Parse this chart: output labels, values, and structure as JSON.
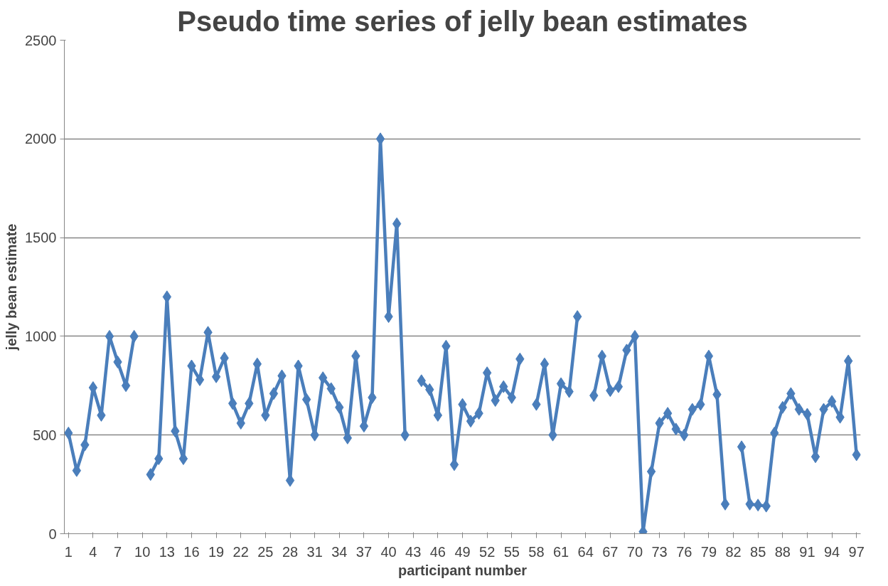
{
  "chart_data": {
    "type": "line",
    "title": "Pseudo time series of jelly bean estimates",
    "xlabel": "participant number",
    "ylabel": "jelly bean estimate",
    "categories": [
      "1",
      null,
      null,
      "4",
      null,
      null,
      "7",
      null,
      null,
      "10",
      null,
      null,
      "13",
      null,
      null,
      "16",
      null,
      null,
      "19",
      null,
      null,
      "22",
      null,
      null,
      "25",
      null,
      null,
      "28",
      null,
      null,
      "31",
      null,
      null,
      "34",
      null,
      null,
      "37",
      null,
      null,
      "40",
      null,
      null,
      "43",
      null,
      null,
      "46",
      null,
      null,
      "49",
      null,
      null,
      "52",
      null,
      null,
      "55",
      null,
      null,
      "58",
      null,
      null,
      "61",
      null,
      null,
      "64",
      null,
      null,
      "67",
      null,
      null,
      "70",
      null,
      null,
      "73",
      null,
      null,
      "76",
      null,
      null,
      "79",
      null,
      null,
      "82",
      null,
      null,
      "85",
      null,
      null,
      "88",
      null,
      null,
      "91",
      null,
      null,
      "94",
      null,
      null,
      "97"
    ],
    "series": [
      {
        "color": "#4a7ebb",
        "values": [
          510,
          320,
          450,
          740,
          600,
          1000,
          870,
          750,
          1000,
          null,
          300,
          380,
          1200,
          520,
          380,
          850,
          780,
          1020,
          795,
          890,
          660,
          560,
          660,
          860,
          600,
          710,
          800,
          270,
          850,
          680,
          500,
          790,
          735,
          640,
          485,
          900,
          545,
          690,
          2000,
          1100,
          1570,
          500,
          null,
          775,
          730,
          600,
          950,
          350,
          655,
          570,
          610,
          815,
          675,
          745,
          690,
          885,
          null,
          655,
          860,
          500,
          760,
          720,
          1100,
          null,
          700,
          900,
          725,
          745,
          930,
          1000,
          10,
          315,
          560,
          610,
          530,
          500,
          630,
          655,
          900,
          705,
          150,
          null,
          440,
          150,
          145,
          140,
          510,
          640,
          710,
          630,
          605,
          390,
          630,
          670,
          590,
          875,
          400
        ]
      }
    ],
    "ylim": [
      0,
      2500
    ],
    "yticks": [
      0,
      500,
      1000,
      1500,
      2000,
      2500
    ],
    "grid": "y",
    "marker": "diamond",
    "line_style": "solid"
  }
}
